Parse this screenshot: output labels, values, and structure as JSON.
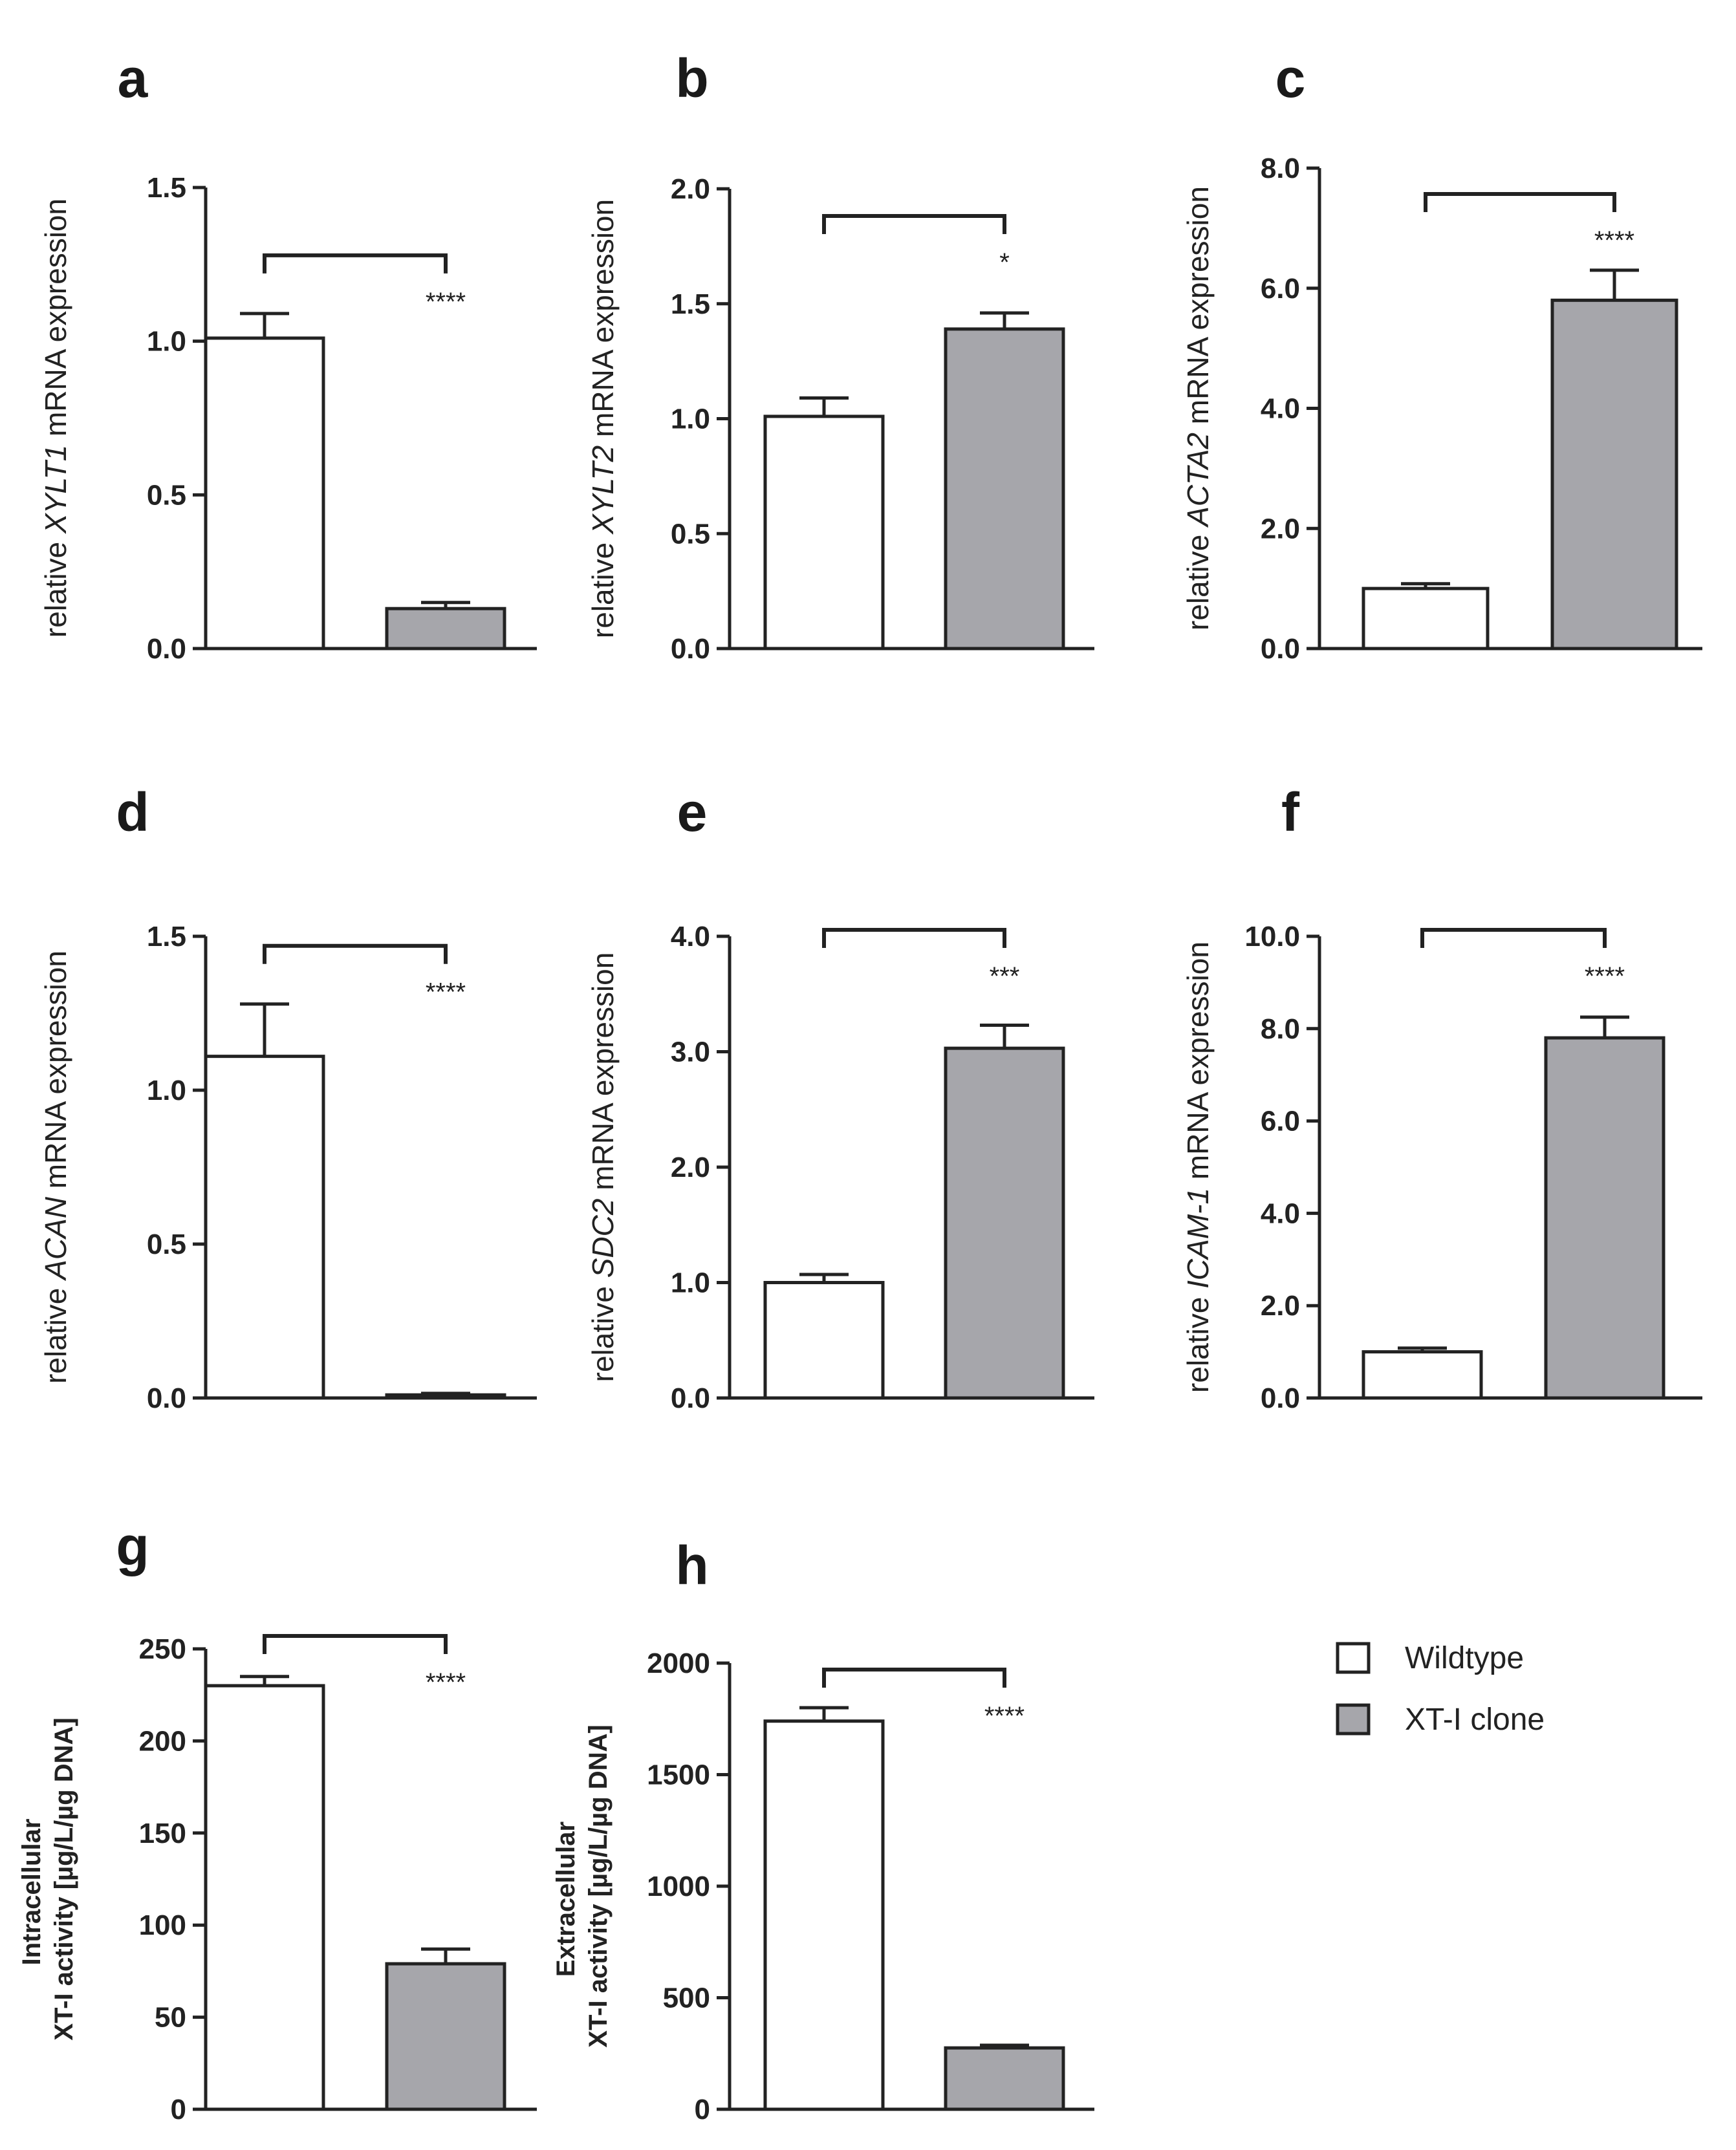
{
  "legend": [
    {
      "label": "Wildtype",
      "color": "#ffffff"
    },
    {
      "label": "XT-I clone",
      "color": "#a6a6ab"
    }
  ],
  "chart_data": [
    {
      "panel": "a",
      "type": "bar",
      "ylabel_prefix": "relative ",
      "ylabel_gene": "XYLT1",
      "ylabel_suffix": " mRNA expression",
      "categories": [
        "Wildtype",
        "XT-I clone"
      ],
      "values": [
        1.01,
        0.13
      ],
      "errors": [
        0.08,
        0.02
      ],
      "ylim": [
        0,
        1.5
      ],
      "ticks": [
        0,
        0.5,
        1.0,
        1.5
      ],
      "tick_labels": [
        "0.0",
        "0.5",
        "1.0",
        "1.5"
      ],
      "significance": "****",
      "sig_above_bar": false
    },
    {
      "panel": "b",
      "type": "bar",
      "ylabel_prefix": "relative ",
      "ylabel_gene": "XYLT2",
      "ylabel_suffix": " mRNA expression",
      "categories": [
        "Wildtype",
        "XT-I clone"
      ],
      "values": [
        1.01,
        1.39
      ],
      "errors": [
        0.08,
        0.07
      ],
      "ylim": [
        0,
        2.0
      ],
      "ticks": [
        0,
        0.5,
        1.0,
        1.5,
        2.0
      ],
      "tick_labels": [
        "0.0",
        "0.5",
        "1.0",
        "1.5",
        "2.0"
      ],
      "significance": "*",
      "sig_above_bar": true
    },
    {
      "panel": "c",
      "type": "bar",
      "ylabel_prefix": "relative ",
      "ylabel_gene": "ACTA2",
      "ylabel_suffix": " mRNA expression",
      "categories": [
        "Wildtype",
        "XT-I clone"
      ],
      "values": [
        1.0,
        5.8
      ],
      "errors": [
        0.08,
        0.5
      ],
      "ylim": [
        0,
        8.0
      ],
      "ticks": [
        0,
        2,
        4,
        6,
        8
      ],
      "tick_labels": [
        "0.0",
        "2.0",
        "4.0",
        "6.0",
        "8.0"
      ],
      "significance": "****",
      "sig_above_bar": true
    },
    {
      "panel": "d",
      "type": "bar",
      "ylabel_prefix": "relative ",
      "ylabel_gene": "ACAN",
      "ylabel_suffix": " mRNA expression",
      "categories": [
        "Wildtype",
        "XT-I clone"
      ],
      "values": [
        1.11,
        0.01
      ],
      "errors": [
        0.17,
        0.005
      ],
      "ylim": [
        0,
        1.5
      ],
      "ticks": [
        0,
        0.5,
        1.0,
        1.5
      ],
      "tick_labels": [
        "0.0",
        "0.5",
        "1.0",
        "1.5"
      ],
      "significance": "****",
      "sig_above_bar": false
    },
    {
      "panel": "e",
      "type": "bar",
      "ylabel_prefix": "relative ",
      "ylabel_gene": "SDC2",
      "ylabel_suffix": " mRNA expression",
      "categories": [
        "Wildtype",
        "XT-I clone"
      ],
      "values": [
        1.0,
        3.03
      ],
      "errors": [
        0.07,
        0.2
      ],
      "ylim": [
        0,
        4.0
      ],
      "ticks": [
        0,
        1,
        2,
        3,
        4
      ],
      "tick_labels": [
        "0.0",
        "1.0",
        "2.0",
        "3.0",
        "4.0"
      ],
      "significance": "***",
      "sig_above_bar": true
    },
    {
      "panel": "f",
      "type": "bar",
      "ylabel_prefix": "relative ",
      "ylabel_gene": "ICAM-1",
      "ylabel_suffix": " mRNA expression",
      "categories": [
        "Wildtype",
        "XT-I clone"
      ],
      "values": [
        1.0,
        7.8
      ],
      "errors": [
        0.08,
        0.45
      ],
      "ylim": [
        0,
        10.0
      ],
      "ticks": [
        0,
        2,
        4,
        6,
        8,
        10
      ],
      "tick_labels": [
        "0.0",
        "2.0",
        "4.0",
        "6.0",
        "8.0",
        "10.0"
      ],
      "significance": "****",
      "sig_above_bar": true
    },
    {
      "panel": "g",
      "type": "bar",
      "ylabel_line1": "Intracellular",
      "ylabel_line2": "XT-I activity [µg/L/µg DNA]",
      "categories": [
        "Wildtype",
        "XT-I clone"
      ],
      "values": [
        230,
        79
      ],
      "errors": [
        5,
        8
      ],
      "ylim": [
        0,
        250
      ],
      "ticks": [
        0,
        50,
        100,
        150,
        200,
        250
      ],
      "tick_labels": [
        "0",
        "50",
        "100",
        "150",
        "200",
        "250"
      ],
      "significance": "****",
      "sig_above_bar": false
    },
    {
      "panel": "h",
      "type": "bar",
      "ylabel_line1": "Extracellular",
      "ylabel_line2": "XT-I activity [µg/L/µg DNA]",
      "categories": [
        "Wildtype",
        "XT-I clone"
      ],
      "values": [
        1740,
        275
      ],
      "errors": [
        60,
        12
      ],
      "ylim": [
        0,
        2000
      ],
      "ticks": [
        0,
        500,
        1000,
        1500,
        2000
      ],
      "tick_labels": [
        "0",
        "500",
        "1000",
        "1500",
        "2000"
      ],
      "significance": "****",
      "sig_above_bar": false
    }
  ]
}
